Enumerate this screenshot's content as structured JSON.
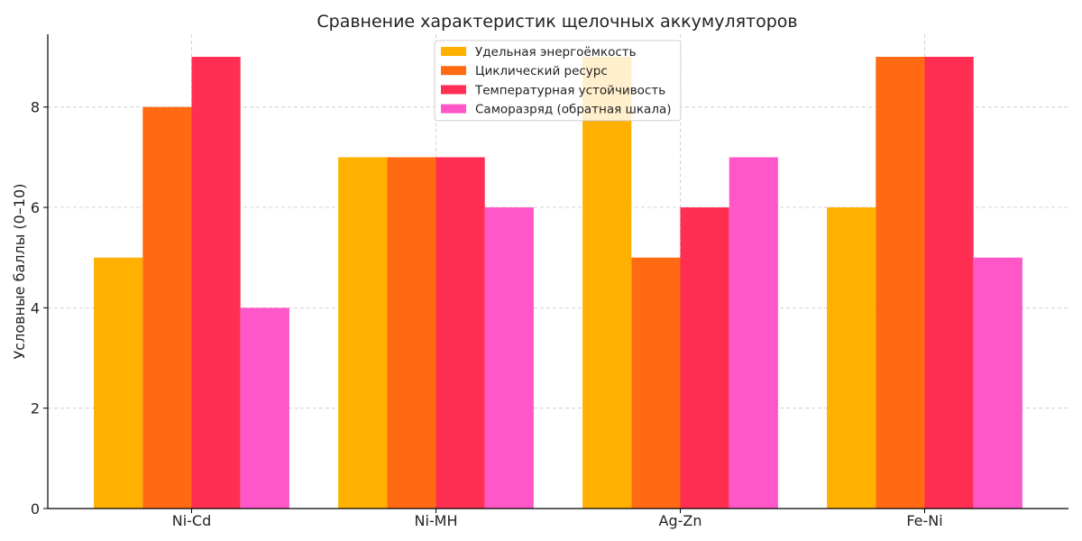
{
  "chart_data": {
    "type": "bar",
    "title": "Сравнение характеристик щелочных аккумуляторов",
    "xlabel": "",
    "ylabel": "Условные баллы (0–10)",
    "ylim": [
      0,
      9.45
    ],
    "yticks": [
      0,
      2,
      4,
      6,
      8
    ],
    "grid": true,
    "legend_position": "top-center",
    "categories": [
      "Ni-Cd",
      "Ni-MH",
      "Ag-Zn",
      "Fe-Ni"
    ],
    "series": [
      {
        "name": "Удельная энергоёмкость",
        "color": "#ffb000",
        "values": [
          5,
          7,
          9,
          6
        ]
      },
      {
        "name": "Циклический ресурс",
        "color": "#ff6a13",
        "values": [
          8,
          7,
          5,
          9
        ]
      },
      {
        "name": "Температурная устойчивость",
        "color": "#ff2e52",
        "values": [
          9,
          7,
          6,
          9
        ]
      },
      {
        "name": "Саморазряд (обратная шкала)",
        "color": "#ff56c8",
        "values": [
          4,
          6,
          7,
          5
        ]
      }
    ]
  }
}
